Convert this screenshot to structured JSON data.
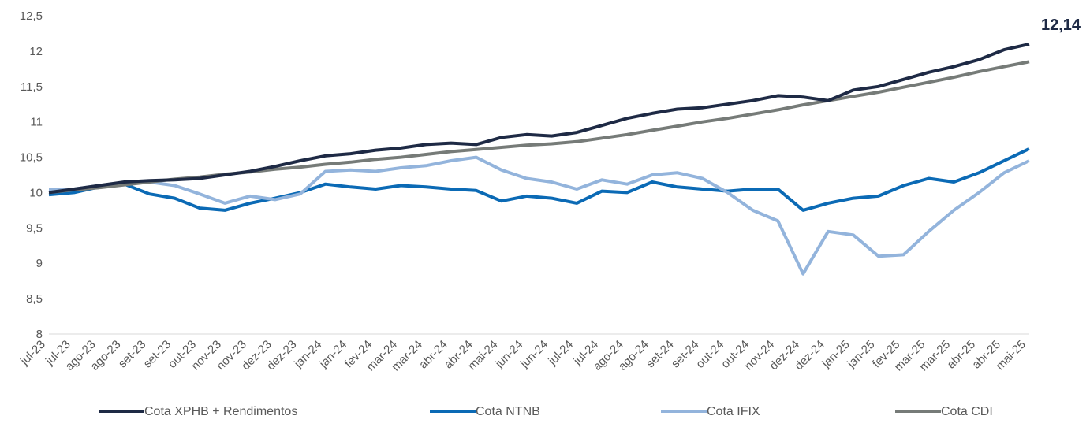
{
  "chart_data": {
    "type": "line",
    "categories": [
      "jul-23",
      "jul-23",
      "ago-23",
      "ago-23",
      "set-23",
      "set-23",
      "out-23",
      "nov-23",
      "nov-23",
      "dez-23",
      "dez-23",
      "jan-24",
      "jan-24",
      "fev-24",
      "mar-24",
      "mar-24",
      "abr-24",
      "abr-24",
      "mai-24",
      "jun-24",
      "jun-24",
      "jul-24",
      "jul-24",
      "ago-24",
      "ago-24",
      "set-24",
      "set-24",
      "out-24",
      "out-24",
      "nov-24",
      "dez-24",
      "dez-24",
      "jan-25",
      "jan-25",
      "fev-25",
      "mar-25",
      "mar-25",
      "abr-25",
      "abr-25",
      "mai-25"
    ],
    "series": [
      {
        "name": "Cota XPHB + Rendimentos",
        "color": "#1e2a45",
        "values": [
          10.0,
          10.05,
          10.1,
          10.15,
          10.17,
          10.18,
          10.2,
          10.25,
          10.3,
          10.37,
          10.45,
          10.52,
          10.55,
          10.6,
          10.63,
          10.68,
          10.7,
          10.68,
          10.78,
          10.82,
          10.8,
          10.85,
          10.95,
          11.05,
          11.12,
          11.18,
          11.2,
          11.25,
          11.3,
          11.37,
          11.35,
          11.3,
          11.45,
          11.5,
          11.6,
          11.7,
          11.78,
          11.88,
          12.02,
          12.1
        ]
      },
      {
        "name": "Cota NTNB",
        "color": "#0b6ab5",
        "values": [
          9.97,
          10.0,
          10.08,
          10.12,
          9.98,
          9.92,
          9.78,
          9.75,
          9.85,
          9.92,
          10.0,
          10.12,
          10.08,
          10.05,
          10.1,
          10.08,
          10.05,
          10.03,
          9.88,
          9.95,
          9.92,
          9.85,
          10.02,
          10.0,
          10.15,
          10.08,
          10.05,
          10.02,
          10.05,
          10.05,
          9.75,
          9.85,
          9.92,
          9.95,
          10.1,
          10.2,
          10.15,
          10.28,
          10.45,
          10.62
        ]
      },
      {
        "name": "Cota IFIX",
        "color": "#93b4dc",
        "values": [
          10.05,
          10.05,
          10.1,
          10.12,
          10.15,
          10.1,
          9.98,
          9.85,
          9.95,
          9.9,
          9.98,
          10.3,
          10.32,
          10.3,
          10.35,
          10.38,
          10.45,
          10.5,
          10.32,
          10.2,
          10.15,
          10.05,
          10.18,
          10.12,
          10.25,
          10.28,
          10.2,
          10.0,
          9.75,
          9.6,
          8.85,
          9.45,
          9.4,
          9.1,
          9.12,
          9.45,
          9.75,
          10.0,
          10.28,
          10.45
        ]
      },
      {
        "name": "Cota CDI",
        "color": "#767b78",
        "values": [
          10.0,
          10.04,
          10.07,
          10.11,
          10.15,
          10.19,
          10.22,
          10.26,
          10.29,
          10.33,
          10.36,
          10.4,
          10.43,
          10.47,
          10.5,
          10.54,
          10.58,
          10.61,
          10.64,
          10.67,
          10.69,
          10.72,
          10.77,
          10.82,
          10.88,
          10.94,
          11.0,
          11.05,
          11.11,
          11.17,
          11.24,
          11.3,
          11.36,
          11.42,
          11.49,
          11.56,
          11.63,
          11.71,
          11.78,
          11.85
        ]
      }
    ],
    "annotation": "12,14",
    "ylim": [
      8,
      12.5
    ],
    "yticks": [
      8,
      {
        "value": 8.5,
        "label": "8,5"
      },
      9,
      {
        "value": 9.5,
        "label": "9,5"
      },
      10,
      {
        "value": 10.5,
        "label": "10,5"
      },
      11,
      {
        "value": 11.5,
        "label": "11,5"
      },
      12,
      {
        "value": 12.5,
        "label": "12,5"
      }
    ],
    "legend": "bottom"
  }
}
